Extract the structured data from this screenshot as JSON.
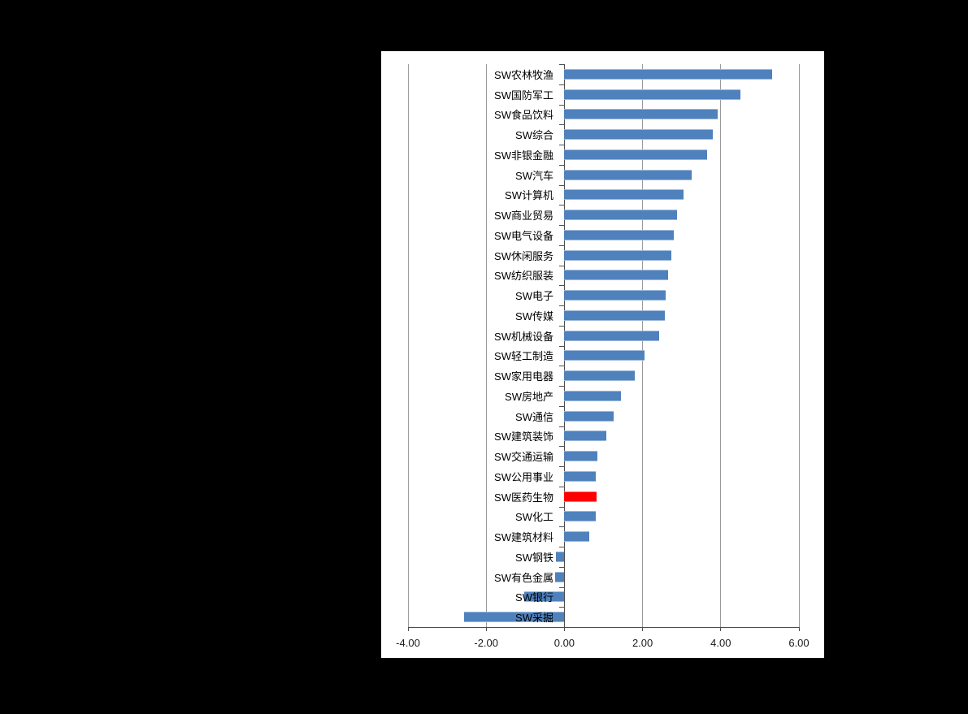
{
  "canvas": {
    "page_background": "#000000",
    "chart_background": "#ffffff",
    "gridline_color": "#9b9b9b",
    "axis_color": "#4d4d4d"
  },
  "chart_data": {
    "type": "bar",
    "orientation": "horizontal",
    "title": "",
    "xlabel": "",
    "ylabel": "",
    "xlim": [
      -4,
      6
    ],
    "grid": true,
    "legend": false,
    "x_tick_labels": [
      "-4.00",
      "-2.00",
      "0.00",
      "2.00",
      "4.00",
      "6.00"
    ],
    "x_tick_values": [
      -4,
      -2,
      0,
      2,
      4,
      6
    ],
    "bar_color": "#4F81BD",
    "highlight_color": "#FF0000",
    "highlight_category": "SW医药生物",
    "highlight_index": 21,
    "categories": [
      "SW农林牧渔",
      "SW国防军工",
      "SW食品饮料",
      "SW综合",
      "SW非银金融",
      "SW汽车",
      "SW计算机",
      "SW商业贸易",
      "SW电气设备",
      "SW休闲服务",
      "SW纺织服装",
      "SW电子",
      "SW传媒",
      "SW机械设备",
      "SW轻工制造",
      "SW家用电器",
      "SW房地产",
      "SW通信",
      "SW建筑装饰",
      "SW交通运输",
      "SW公用事业",
      "SW医药生物",
      "SW化工",
      "SW建筑材料",
      "SW钢铁",
      "SW有色金属",
      "SW银行",
      "SW采掘"
    ],
    "values": [
      5.31,
      4.5,
      3.93,
      3.79,
      3.65,
      3.25,
      3.05,
      2.88,
      2.8,
      2.73,
      2.65,
      2.6,
      2.57,
      2.42,
      2.05,
      1.8,
      1.45,
      1.26,
      1.08,
      0.85,
      0.8,
      0.82,
      0.8,
      0.63,
      -0.21,
      -0.24,
      -1.02,
      -2.57
    ]
  }
}
